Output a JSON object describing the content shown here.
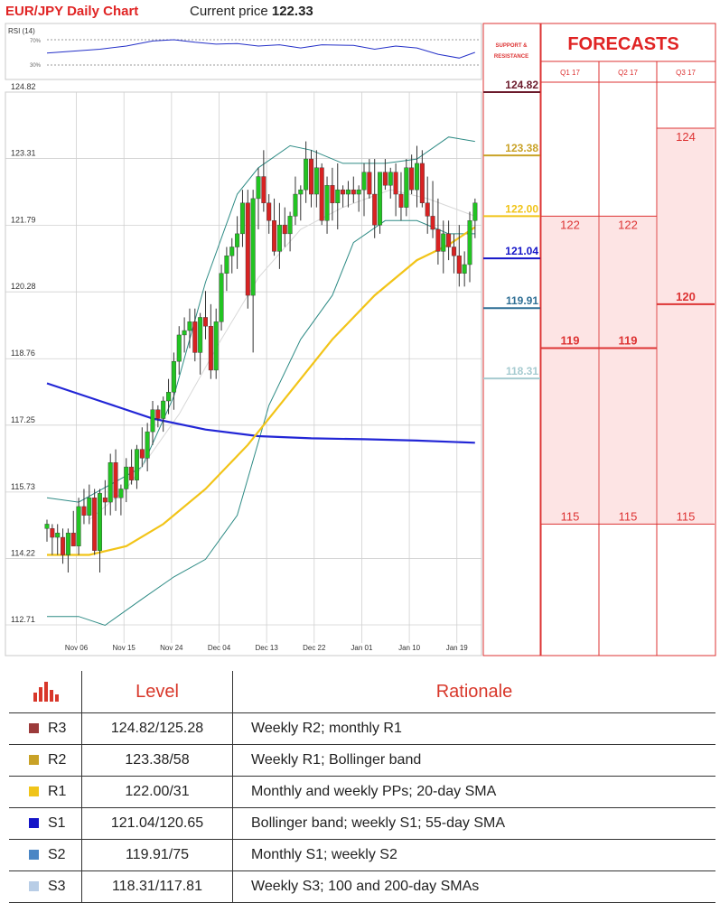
{
  "header": {
    "title": "EUR/JPY Daily Chart",
    "price_label": "Current price",
    "price_value": "122.33"
  },
  "rsi": {
    "label": "RSI (14)",
    "upper": "70%",
    "lower": "30%"
  },
  "support_resistance": {
    "title": "SUPPORT & RESISTANCE"
  },
  "forecasts": {
    "title": "FORECASTS",
    "columns": [
      "Q1 17",
      "Q2 17",
      "Q3 17"
    ],
    "values": [
      [
        {
          "label": "122",
          "value": 122
        },
        {
          "label": "119",
          "value": 119
        },
        {
          "label": "115",
          "value": 115
        }
      ],
      [
        {
          "label": "122",
          "value": 122
        },
        {
          "label": "119",
          "value": 119
        },
        {
          "label": "115",
          "value": 115
        }
      ],
      [
        {
          "label": "124",
          "value": 124
        },
        {
          "label": "120",
          "value": 120
        },
        {
          "label": "115",
          "value": 115
        }
      ]
    ]
  },
  "chart_data": {
    "type": "candlestick",
    "title": "EUR/JPY Daily Chart",
    "y_ticks": [
      "124.82",
      "123.31",
      "121.79",
      "120.28",
      "118.76",
      "117.25",
      "115.73",
      "114.22",
      "112.71"
    ],
    "y_tick_values": [
      124.82,
      123.31,
      121.79,
      120.28,
      118.76,
      117.25,
      115.73,
      114.22,
      112.71
    ],
    "ylim": [
      112.71,
      124.82
    ],
    "x_ticks": [
      "Nov 06",
      "Nov 15",
      "Nov 24",
      "Dec 04",
      "Dec 13",
      "Dec 22",
      "Jan 01",
      "Jan 10",
      "Jan 19"
    ],
    "x_tick_index": [
      3,
      12,
      21,
      30,
      39,
      48,
      57,
      66,
      75
    ],
    "grid": true,
    "candles": [
      [
        114.9,
        115.1,
        114.6,
        115.0
      ],
      [
        114.9,
        115.0,
        114.3,
        114.7
      ],
      [
        114.7,
        115.0,
        114.3,
        114.8
      ],
      [
        114.7,
        114.9,
        114.1,
        114.3
      ],
      [
        114.3,
        114.9,
        113.9,
        114.8
      ],
      [
        114.8,
        115.3,
        114.6,
        114.5
      ],
      [
        114.5,
        115.6,
        114.3,
        115.4
      ],
      [
        115.4,
        115.8,
        115.0,
        115.2
      ],
      [
        115.2,
        115.9,
        115.0,
        115.6
      ],
      [
        115.6,
        115.8,
        114.3,
        114.4
      ],
      [
        114.4,
        115.8,
        113.9,
        115.7
      ],
      [
        115.6,
        116.0,
        115.2,
        115.5
      ],
      [
        115.5,
        116.6,
        115.2,
        116.4
      ],
      [
        116.4,
        116.7,
        115.3,
        115.6
      ],
      [
        115.6,
        115.9,
        115.2,
        115.8
      ],
      [
        115.8,
        116.5,
        115.5,
        116.3
      ],
      [
        116.3,
        116.7,
        115.9,
        116.0
      ],
      [
        116.0,
        116.8,
        115.8,
        116.7
      ],
      [
        116.7,
        117.2,
        116.3,
        116.5
      ],
      [
        116.5,
        117.3,
        116.2,
        117.1
      ],
      [
        117.1,
        117.8,
        116.8,
        117.6
      ],
      [
        117.6,
        117.7,
        117.2,
        117.4
      ],
      [
        117.4,
        117.9,
        117.1,
        117.8
      ],
      [
        117.8,
        118.3,
        117.5,
        118.0
      ],
      [
        118.0,
        118.9,
        117.6,
        118.7
      ],
      [
        118.7,
        119.5,
        118.4,
        119.3
      ],
      [
        119.3,
        119.7,
        118.9,
        119.4
      ],
      [
        119.4,
        119.9,
        119.0,
        119.6
      ],
      [
        119.6,
        119.9,
        118.7,
        118.9
      ],
      [
        118.9,
        119.8,
        118.4,
        119.7
      ],
      [
        119.7,
        120.3,
        119.2,
        119.5
      ],
      [
        119.5,
        120.0,
        118.3,
        118.5
      ],
      [
        118.5,
        119.9,
        118.3,
        119.6
      ],
      [
        119.6,
        120.9,
        119.4,
        120.7
      ],
      [
        120.7,
        121.3,
        120.3,
        121.1
      ],
      [
        121.1,
        121.5,
        120.7,
        121.3
      ],
      [
        121.3,
        122.0,
        120.8,
        121.6
      ],
      [
        121.6,
        122.6,
        121.3,
        122.3
      ],
      [
        122.3,
        122.6,
        119.9,
        120.2
      ],
      [
        120.2,
        122.6,
        118.9,
        122.4
      ],
      [
        122.4,
        123.1,
        121.7,
        122.9
      ],
      [
        122.9,
        123.5,
        122.1,
        122.3
      ],
      [
        122.3,
        122.5,
        121.6,
        121.9
      ],
      [
        121.9,
        122.4,
        121.1,
        121.2
      ],
      [
        121.2,
        122.3,
        120.8,
        121.8
      ],
      [
        121.8,
        122.2,
        121.3,
        121.6
      ],
      [
        121.6,
        122.1,
        121.2,
        122.0
      ],
      [
        122.0,
        122.9,
        121.8,
        122.5
      ],
      [
        122.5,
        122.7,
        121.9,
        122.6
      ],
      [
        122.6,
        123.7,
        122.3,
        123.3
      ],
      [
        123.3,
        123.5,
        122.2,
        122.5
      ],
      [
        122.5,
        123.5,
        122.2,
        123.1
      ],
      [
        123.1,
        123.2,
        121.8,
        121.9
      ],
      [
        121.9,
        122.9,
        121.6,
        122.7
      ],
      [
        122.7,
        123.1,
        121.9,
        122.3
      ],
      [
        122.3,
        123.2,
        121.7,
        122.6
      ],
      [
        122.6,
        122.7,
        122.2,
        122.5
      ],
      [
        122.5,
        122.8,
        122.2,
        122.6
      ],
      [
        122.6,
        122.9,
        122.3,
        122.5
      ],
      [
        122.5,
        122.7,
        122.1,
        122.6
      ],
      [
        122.6,
        123.2,
        122.0,
        123.0
      ],
      [
        123.0,
        123.3,
        122.4,
        122.5
      ],
      [
        122.5,
        123.3,
        121.5,
        121.8
      ],
      [
        121.8,
        123.0,
        121.6,
        123.0
      ],
      [
        123.0,
        123.3,
        122.6,
        122.7
      ],
      [
        122.7,
        123.1,
        122.4,
        123.0
      ],
      [
        123.0,
        123.2,
        122.0,
        122.5
      ],
      [
        122.5,
        123.0,
        121.9,
        122.2
      ],
      [
        122.2,
        123.3,
        122.0,
        123.1
      ],
      [
        123.1,
        123.4,
        122.5,
        122.6
      ],
      [
        122.6,
        123.6,
        122.2,
        123.2
      ],
      [
        123.2,
        123.5,
        122.2,
        122.3
      ],
      [
        122.3,
        122.9,
        121.6,
        122.0
      ],
      [
        122.0,
        122.8,
        121.5,
        121.7
      ],
      [
        121.7,
        122.4,
        120.9,
        121.2
      ],
      [
        121.2,
        121.9,
        120.7,
        121.6
      ],
      [
        121.6,
        121.9,
        121.0,
        121.3
      ],
      [
        121.3,
        121.6,
        120.7,
        121.1
      ],
      [
        121.1,
        121.8,
        120.4,
        120.7
      ],
      [
        120.7,
        121.2,
        120.4,
        120.9
      ],
      [
        120.9,
        122.1,
        120.5,
        121.9
      ],
      [
        121.9,
        122.4,
        121.5,
        122.3
      ]
    ],
    "sma_200": [
      [
        0,
        118.2
      ],
      [
        10,
        117.8
      ],
      [
        20,
        117.4
      ],
      [
        30,
        117.15
      ],
      [
        40,
        117.0
      ],
      [
        50,
        116.95
      ],
      [
        60,
        116.93
      ],
      [
        70,
        116.9
      ],
      [
        81,
        116.85
      ]
    ],
    "sma_20_like": [
      [
        0,
        114.3
      ],
      [
        8,
        114.3
      ],
      [
        15,
        114.5
      ],
      [
        22,
        115.0
      ],
      [
        30,
        115.8
      ],
      [
        38,
        116.8
      ],
      [
        46,
        118.0
      ],
      [
        54,
        119.2
      ],
      [
        62,
        120.2
      ],
      [
        70,
        121.0
      ],
      [
        76,
        121.35
      ],
      [
        81,
        121.75
      ]
    ],
    "sma_grey": [
      [
        8,
        115.1
      ],
      [
        15,
        115.8
      ],
      [
        25,
        117.5
      ],
      [
        33,
        119.2
      ],
      [
        40,
        120.6
      ],
      [
        48,
        121.7
      ],
      [
        56,
        122.2
      ],
      [
        65,
        122.6
      ],
      [
        72,
        122.4
      ],
      [
        81,
        122.0
      ]
    ],
    "bb_upper": [
      [
        0,
        115.6
      ],
      [
        6,
        115.5
      ],
      [
        12,
        115.9
      ],
      [
        18,
        116.3
      ],
      [
        24,
        117.9
      ],
      [
        30,
        120.5
      ],
      [
        36,
        122.5
      ],
      [
        40,
        123.1
      ],
      [
        46,
        123.6
      ],
      [
        50,
        123.5
      ],
      [
        56,
        123.2
      ],
      [
        64,
        123.2
      ],
      [
        70,
        123.3
      ],
      [
        76,
        123.8
      ],
      [
        81,
        123.7
      ]
    ],
    "bb_lower": [
      [
        0,
        112.9
      ],
      [
        6,
        112.9
      ],
      [
        11,
        112.7
      ],
      [
        18,
        113.3
      ],
      [
        24,
        113.8
      ],
      [
        30,
        114.2
      ],
      [
        36,
        115.2
      ],
      [
        42,
        117.7
      ],
      [
        48,
        119.2
      ],
      [
        54,
        120.2
      ],
      [
        58,
        121.4
      ],
      [
        64,
        121.9
      ],
      [
        70,
        121.9
      ],
      [
        76,
        121.6
      ],
      [
        81,
        121.6
      ]
    ],
    "rsi_line": [
      [
        0,
        49
      ],
      [
        5,
        52
      ],
      [
        10,
        55
      ],
      [
        15,
        60
      ],
      [
        20,
        68
      ],
      [
        24,
        70
      ],
      [
        28,
        66
      ],
      [
        32,
        63
      ],
      [
        36,
        64
      ],
      [
        40,
        60
      ],
      [
        44,
        62
      ],
      [
        48,
        57
      ],
      [
        52,
        62
      ],
      [
        58,
        61
      ],
      [
        62,
        55
      ],
      [
        66,
        60
      ],
      [
        70,
        57
      ],
      [
        74,
        47
      ],
      [
        78,
        41
      ],
      [
        81,
        50
      ]
    ]
  },
  "levels": [
    {
      "code": "R3",
      "value": 124.82,
      "label": "124.82",
      "color": "#6b1a2b"
    },
    {
      "code": "R2",
      "value": 123.38,
      "label": "123.38",
      "color": "#c9a227"
    },
    {
      "code": "R1",
      "value": 122.0,
      "label": "122.00",
      "color": "#f0c419"
    },
    {
      "code": "S1",
      "value": 121.04,
      "label": "121.04",
      "color": "#1414c8"
    },
    {
      "code": "S2",
      "value": 119.91,
      "label": "119.91",
      "color": "#2f6f95"
    },
    {
      "code": "S3",
      "value": 118.31,
      "label": "118.31",
      "color": "#a6cbd0"
    }
  ],
  "table": {
    "headers": {
      "level": "Level",
      "rationale": "Rationale"
    },
    "rows": [
      {
        "code": "R3",
        "level": "124.82/125.28",
        "rationale": "Weekly R2; monthly R1",
        "color": "#9b3a3a"
      },
      {
        "code": "R2",
        "level": "123.38/58",
        "rationale": "Weekly R1; Bollinger band",
        "color": "#c9a227"
      },
      {
        "code": "R1",
        "level": "122.00/31",
        "rationale": "Monthly and weekly PPs; 20-day SMA",
        "color": "#f0c419"
      },
      {
        "code": "S1",
        "level": "121.04/120.65",
        "rationale": "Bollinger band; weekly S1; 55-day SMA",
        "color": "#1414c8"
      },
      {
        "code": "S2",
        "level": "119.91/75",
        "rationale": "Monthly S1; weekly S2",
        "color": "#4a86c5"
      },
      {
        "code": "S3",
        "level": "118.31/117.81",
        "rationale": "Weekly S3; 100 and 200-day SMAs",
        "color": "#b8cde6"
      }
    ]
  }
}
